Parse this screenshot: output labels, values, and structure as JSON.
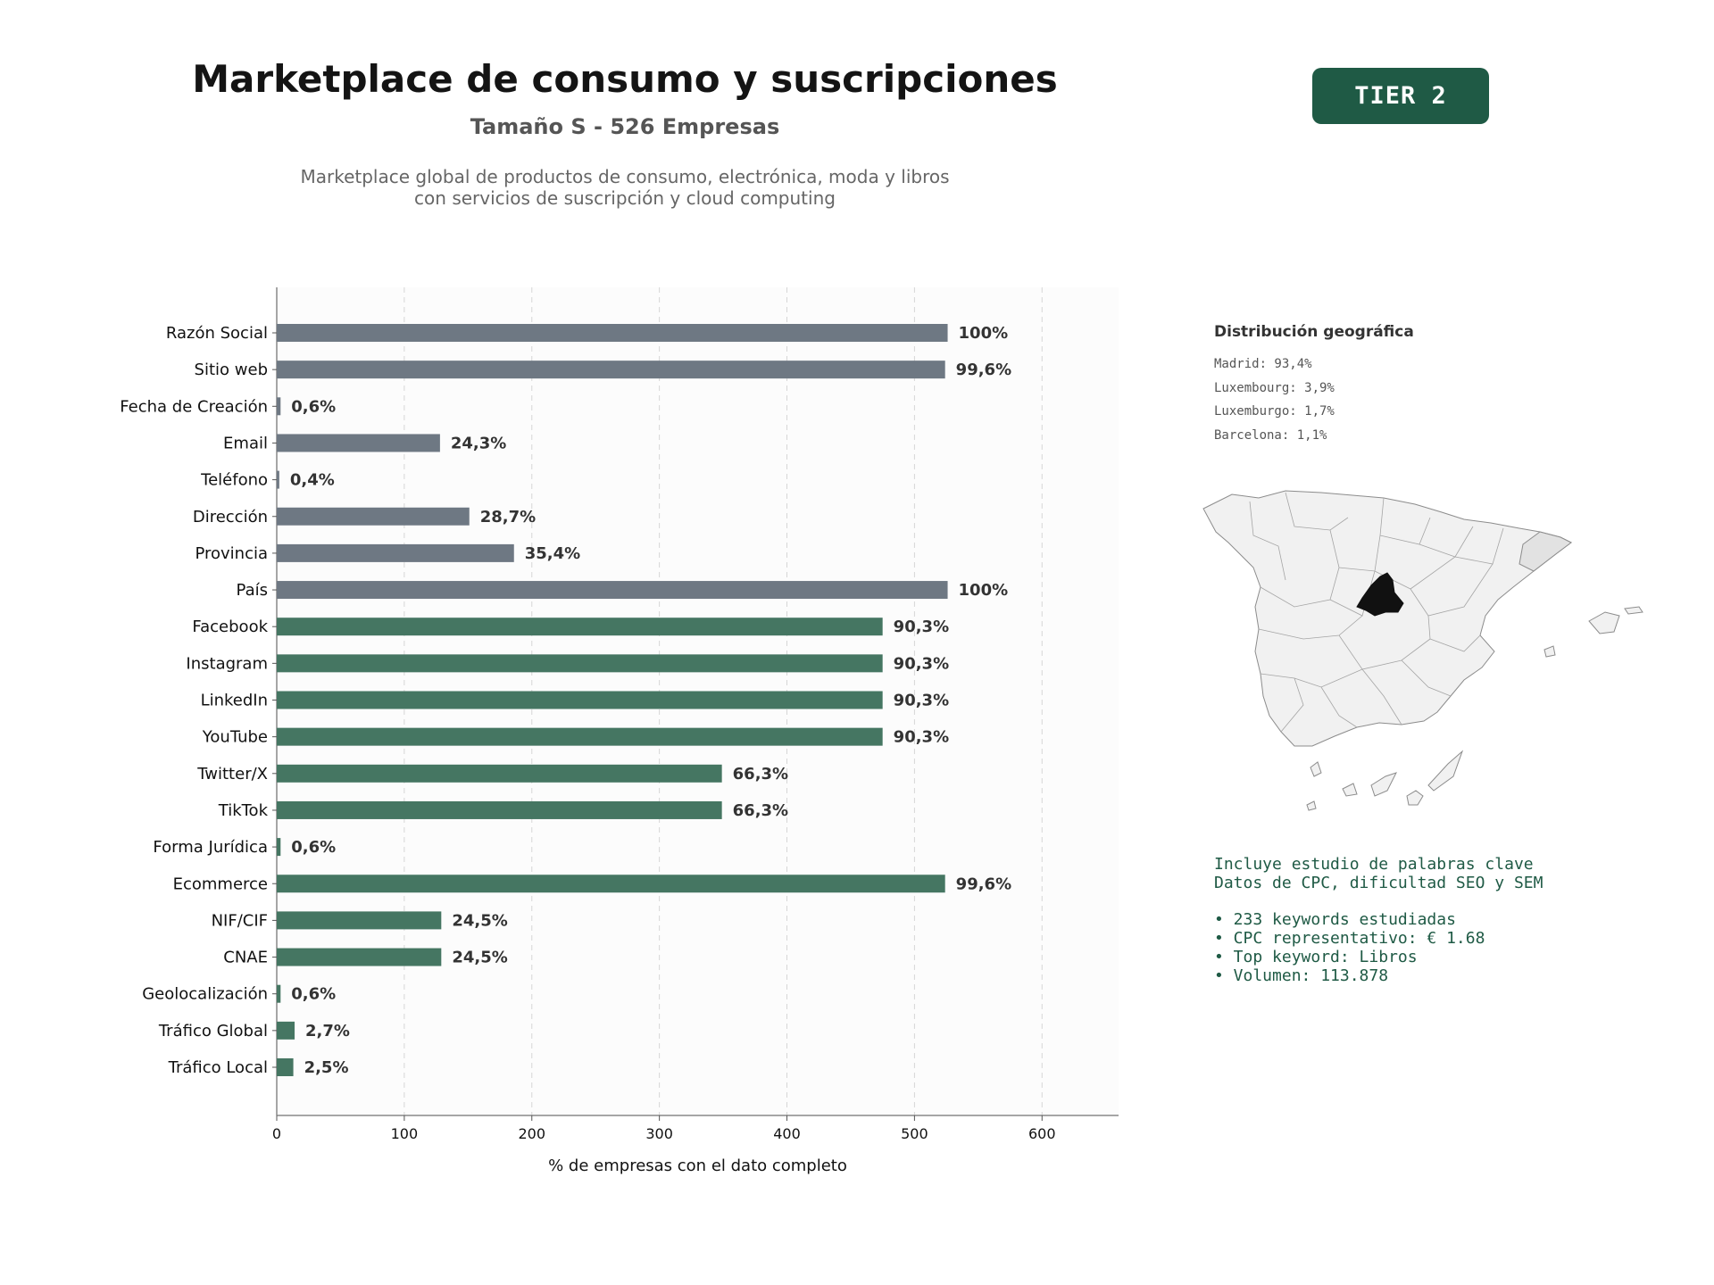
{
  "header": {
    "title": "Marketplace de consumo y suscripciones",
    "subtitle": "Tamaño S - 526 Empresas",
    "description_lines": [
      "Marketplace global de productos de consumo, electrónica, moda y libros",
      "con servicios de suscripción y cloud computing"
    ],
    "tier_badge": "TIER 2"
  },
  "colors": {
    "gray_bar": "#6e7883",
    "green_bar": "#457662",
    "badge": "#1f5a45",
    "madrid": "#111111",
    "catalonia": "#e2e2e2",
    "region": "#f1f1f1"
  },
  "chart_data": {
    "type": "bar",
    "orientation": "horizontal",
    "xlabel": "% de empresas con el dato completo",
    "xlim": [
      0,
      660
    ],
    "xticks": [
      0,
      100,
      200,
      300,
      400,
      500,
      600
    ],
    "grid": true,
    "categories": [
      "Razón Social",
      "Sitio web",
      "Fecha de Creación",
      "Email",
      "Teléfono",
      "Dirección",
      "Provincia",
      "País",
      "Facebook",
      "Instagram",
      "LinkedIn",
      "YouTube",
      "Twitter/X",
      "TikTok",
      "Forma Jurídica",
      "Ecommerce",
      "NIF/CIF",
      "CNAE",
      "Geolocalización",
      "Tráfico Global",
      "Tráfico Local"
    ],
    "values": [
      526,
      524,
      3,
      128,
      2,
      151,
      186,
      526,
      475,
      475,
      475,
      475,
      349,
      349,
      3,
      524,
      129,
      129,
      3,
      14,
      13
    ],
    "labels": [
      "100%",
      "99,6%",
      "0,6%",
      "24,3%",
      "0,4%",
      "28,7%",
      "35,4%",
      "100%",
      "90,3%",
      "90,3%",
      "90,3%",
      "90,3%",
      "66,3%",
      "66,3%",
      "0,6%",
      "99,6%",
      "24,5%",
      "24,5%",
      "0,6%",
      "2,7%",
      "2,5%"
    ],
    "groups": [
      "gray",
      "gray",
      "gray",
      "gray",
      "gray",
      "gray",
      "gray",
      "gray",
      "green",
      "green",
      "green",
      "green",
      "green",
      "green",
      "green",
      "green",
      "green",
      "green",
      "green",
      "green",
      "green"
    ]
  },
  "geo": {
    "title": "Distribución geográfica",
    "items": [
      "Madrid: 93,4%",
      "Luxembourg: 3,9%",
      "Luxemburgo: 1,7%",
      "Barcelona: 1,1%"
    ]
  },
  "keywords": {
    "lines": [
      "Incluye estudio de palabras clave",
      "Datos de CPC, dificultad SEO y SEM"
    ],
    "bullets": [
      "• 233 keywords estudiadas",
      "• CPC representativo: € 1.68",
      "• Top keyword: Libros",
      "• Volumen: 113.878"
    ]
  }
}
